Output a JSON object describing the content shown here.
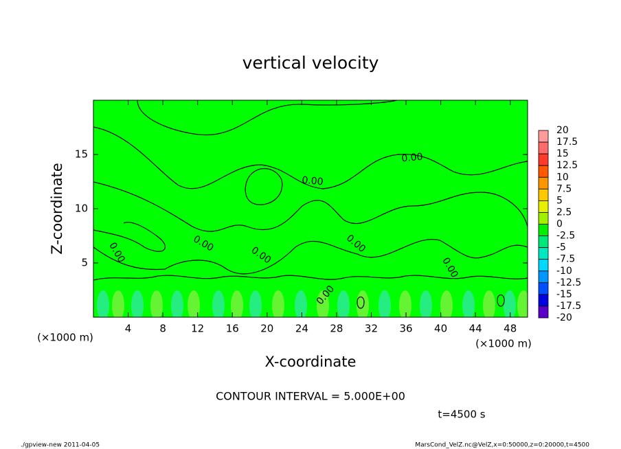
{
  "chart_data": {
    "type": "contour",
    "title": "vertical velocity",
    "x_label": "X-coordinate",
    "y_label": "Z-coordinate",
    "x_unit_left": "(×1000 m)",
    "x_unit_right": "(×1000 m)",
    "xlim": [
      0,
      50
    ],
    "xticks": [
      4,
      8,
      12,
      16,
      20,
      24,
      28,
      32,
      36,
      40,
      44,
      48
    ],
    "ylim": [
      0,
      20
    ],
    "yticks": [
      5,
      10,
      15
    ],
    "fill_color": "#00ff00",
    "contour_labels": [
      "0.00",
      "0.00",
      "0.00",
      "0.00",
      "0.00",
      "0.00",
      "0.00",
      "0.00"
    ],
    "colorbar": {
      "levels": [
        20,
        17.5,
        15,
        12.5,
        10,
        7.5,
        5,
        2.5,
        0,
        -2.5,
        -5,
        -7.5,
        -10,
        -12.5,
        -15,
        -17.5,
        -20
      ],
      "colors": [
        "#ff9a9a",
        "#ff6a6a",
        "#ff3a2a",
        "#ff5a00",
        "#ff9600",
        "#ffc800",
        "#e6f000",
        "#a0f000",
        "#00f000",
        "#00e878",
        "#00e8c0",
        "#00d8ff",
        "#0096ff",
        "#0050ff",
        "#0000e0",
        "#5a00c8"
      ]
    },
    "annotation": "CONTOUR INTERVAL = 5.000E+00",
    "time_label": "t=4500 s",
    "footer_left": "./gpview-new   2011-04-05",
    "footer_right": "MarsCond_VelZ.nc@VelZ,x=0:50000,z=0:20000,t=4500"
  }
}
